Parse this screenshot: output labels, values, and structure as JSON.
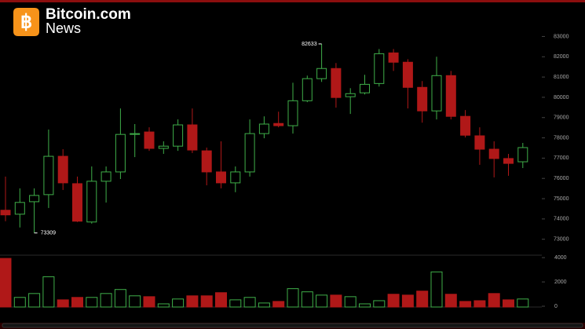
{
  "header": {
    "brand": "Bitcoin.com",
    "sub": "News"
  },
  "chart_data": {
    "type": "candlestick",
    "up_color": "#3fae49",
    "down_color": "#b01818",
    "open": [
      74430,
      74235,
      74850,
      75200,
      77090,
      75740,
      73850,
      75860,
      76320,
      78170,
      78290,
      77480,
      77590,
      78640,
      77360,
      76320,
      75780,
      76320,
      78210,
      78710,
      78600,
      79830,
      80920,
      81420,
      80030,
      80220,
      80680,
      82190,
      81730,
      80490,
      79330,
      81070,
      79060,
      78100,
      77440,
      76980,
      76820
    ],
    "high": [
      76090,
      75510,
      75510,
      78410,
      77440,
      76090,
      76590,
      76590,
      79450,
      78680,
      78520,
      77830,
      78910,
      79450,
      77520,
      77830,
      76590,
      78910,
      79060,
      79290,
      80720,
      81070,
      82633,
      81690,
      80450,
      81110,
      82380,
      82380,
      81880,
      80800,
      82000,
      81300,
      79370,
      78520,
      77830,
      77210,
      77750
    ],
    "low": [
      73890,
      73580,
      73309,
      74540,
      75430,
      73850,
      73770,
      74810,
      75970,
      77050,
      77360,
      77210,
      77360,
      77250,
      75660,
      75510,
      75320,
      76090,
      77980,
      78520,
      78210,
      79760,
      80760,
      79490,
      79180,
      80140,
      80530,
      81300,
      79450,
      78750,
      78910,
      78910,
      78020,
      76670,
      76050,
      76130,
      76510
    ],
    "close": [
      74200,
      74815,
      75160,
      77090,
      75780,
      73890,
      75860,
      76320,
      78170,
      78210,
      77480,
      77590,
      78640,
      77400,
      76320,
      75780,
      76320,
      78210,
      78680,
      78600,
      79830,
      80920,
      81420,
      79990,
      80180,
      80640,
      82150,
      81730,
      80490,
      79330,
      81070,
      79060,
      78130,
      77440,
      76980,
      76740,
      77520
    ],
    "volume": [
      4000,
      790,
      1110,
      2490,
      590,
      790,
      790,
      1110,
      1440,
      920,
      850,
      260,
      660,
      920,
      920,
      1180,
      590,
      790,
      330,
      460,
      1510,
      1250,
      980,
      980,
      850,
      260,
      520,
      1050,
      980,
      1310,
      2890,
      1050,
      460,
      520,
      1110,
      590,
      660
    ],
    "ylim": [
      72600,
      83250
    ],
    "yticks": [
      73000,
      74000,
      75000,
      76000,
      77000,
      78000,
      79000,
      80000,
      81000,
      82000,
      83000
    ],
    "vlim": [
      0,
      4200
    ],
    "vticks": [
      0,
      2000,
      4000
    ],
    "high_label": "82633",
    "low_label": "73309"
  }
}
